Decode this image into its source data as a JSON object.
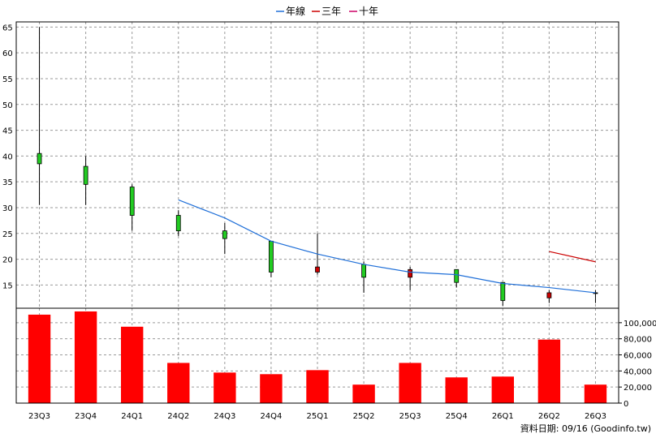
{
  "chart_data": {
    "type": "candlestick",
    "legend": [
      {
        "label": "年線",
        "color": "#1f6fd8"
      },
      {
        "label": "三年",
        "color": "#cc0000"
      },
      {
        "label": "十年",
        "color": "#cc0066"
      }
    ],
    "categories": [
      "23Q3",
      "23Q4",
      "24Q1",
      "24Q2",
      "24Q3",
      "24Q4",
      "25Q1",
      "25Q2",
      "25Q3",
      "25Q4",
      "26Q1",
      "26Q2",
      "26Q3"
    ],
    "price_axis": {
      "ticks": [
        "15",
        "20",
        "25",
        "30",
        "35",
        "40",
        "45",
        "50",
        "55",
        "60",
        "65"
      ],
      "range": [
        10.5,
        66
      ]
    },
    "volume_axis": {
      "ticks": [
        "0",
        "20,000",
        "40,000",
        "60,000",
        "80,000",
        "100,000"
      ],
      "range": [
        0,
        118000
      ]
    },
    "grid": true,
    "legend_position": "top-center",
    "candles": [
      {
        "open": 38.5,
        "close": 40.5,
        "high": 65.0,
        "low": 30.5
      },
      {
        "open": 34.5,
        "close": 38.0,
        "high": 40.0,
        "low": 30.5
      },
      {
        "open": 28.5,
        "close": 34.0,
        "high": 34.5,
        "low": 25.5
      },
      {
        "open": 25.5,
        "close": 28.5,
        "high": 29.5,
        "low": 24.5
      },
      {
        "open": 24.0,
        "close": 25.5,
        "high": 27.0,
        "low": 21.0
      },
      {
        "open": 17.5,
        "close": 23.5,
        "high": 23.5,
        "low": 16.5
      },
      {
        "open": 18.5,
        "close": 17.5,
        "high": 25.0,
        "low": 17.0
      },
      {
        "open": 16.5,
        "close": 19.0,
        "high": 19.5,
        "low": 13.5
      },
      {
        "open": 18.0,
        "close": 16.5,
        "high": 18.5,
        "low": 14.0
      },
      {
        "open": 15.5,
        "close": 18.0,
        "high": 18.0,
        "low": 14.5
      },
      {
        "open": 12.0,
        "close": 15.5,
        "high": 15.5,
        "low": 11.0
      },
      {
        "open": 13.5,
        "close": 12.5,
        "high": 14.0,
        "low": 11.5
      },
      {
        "open": 13.5,
        "close": 13.5,
        "high": 14.0,
        "low": 11.5
      }
    ],
    "year_line": [
      null,
      null,
      null,
      31.5,
      28.0,
      23.5,
      21.0,
      19.0,
      17.5,
      17.0,
      15.3,
      14.5,
      13.5
    ],
    "three_year_line": [
      null,
      null,
      null,
      null,
      null,
      null,
      null,
      null,
      null,
      null,
      null,
      21.5,
      19.5
    ],
    "volume": [
      110000,
      114000,
      95000,
      50000,
      38000,
      36000,
      41000,
      23000,
      50000,
      32000,
      33000,
      79000,
      23000
    ],
    "footer": "資料日期: 09/16  (Goodinfo.tw)"
  }
}
